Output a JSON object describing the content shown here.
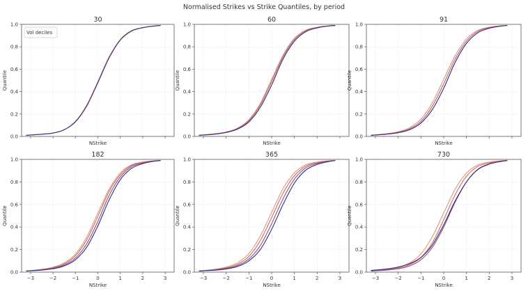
{
  "figure": {
    "title": "Normalised Strikes vs Strike Quantiles, by period"
  },
  "chart_data": {
    "type": "line",
    "title": "Normalised Strikes vs Strike Quantiles, by period",
    "xlabel": "NStrike",
    "ylabel": "Quantile",
    "xlim": [
      -3.4,
      3.4
    ],
    "ylim": [
      0,
      1
    ],
    "xticks": [
      "−3",
      "−2",
      "−1",
      "0",
      "1",
      "2",
      "3"
    ],
    "xtick_values": [
      -3,
      -2,
      -1,
      0,
      1,
      2,
      3
    ],
    "yticks": [
      "0.0",
      "0.2",
      "0.4",
      "0.6",
      "0.8",
      "1.0"
    ],
    "ytick_values": [
      0,
      0.2,
      0.4,
      0.6,
      0.8,
      1.0
    ],
    "grid": true,
    "legend": {
      "title": "Vol deciles",
      "placement": "top-left",
      "panel": 0
    },
    "series_colors": [
      "#2b2d7a",
      "#4a3d8e",
      "#6b4a9a",
      "#8c4f8f",
      "#a65a80",
      "#b86070",
      "#c96c5e",
      "#d6705a",
      "#dd7e6a",
      "#e2957e"
    ],
    "x_samples": [
      -3.2,
      -2.5,
      -2.0,
      -1.5,
      -1.0,
      -0.5,
      0.0,
      0.5,
      1.0,
      1.5,
      2.0,
      2.5,
      2.8
    ],
    "panels": [
      {
        "title": "30",
        "x_tick_labels_shown": false,
        "series": [
          {
            "values": [
              0.01,
              0.02,
              0.03,
              0.06,
              0.13,
              0.27,
              0.48,
              0.7,
              0.86,
              0.94,
              0.97,
              0.985,
              0.99
            ]
          },
          {
            "values": [
              0.01,
              0.02,
              0.03,
              0.06,
              0.135,
              0.28,
              0.49,
              0.71,
              0.865,
              0.945,
              0.972,
              0.986,
              0.99
            ]
          }
        ]
      },
      {
        "title": "60",
        "x_tick_labels_shown": false,
        "series": [
          {
            "values": [
              0.01,
              0.02,
              0.035,
              0.065,
              0.13,
              0.26,
              0.46,
              0.69,
              0.85,
              0.935,
              0.968,
              0.985,
              0.99
            ]
          },
          {
            "values": [
              0.01,
              0.022,
              0.037,
              0.07,
              0.14,
              0.28,
              0.49,
              0.71,
              0.865,
              0.943,
              0.972,
              0.986,
              0.99
            ]
          },
          {
            "values": [
              0.01,
              0.024,
              0.04,
              0.075,
              0.15,
              0.295,
              0.51,
              0.725,
              0.875,
              0.948,
              0.975,
              0.987,
              0.99
            ]
          }
        ]
      },
      {
        "title": "91",
        "x_tick_labels_shown": false,
        "series": [
          {
            "values": [
              0.01,
              0.02,
              0.033,
              0.06,
              0.12,
              0.24,
              0.43,
              0.66,
              0.83,
              0.925,
              0.965,
              0.984,
              0.99
            ]
          },
          {
            "values": [
              0.01,
              0.022,
              0.037,
              0.068,
              0.135,
              0.27,
              0.47,
              0.69,
              0.85,
              0.937,
              0.97,
              0.985,
              0.99
            ]
          },
          {
            "values": [
              0.01,
              0.024,
              0.042,
              0.078,
              0.155,
              0.3,
              0.51,
              0.72,
              0.87,
              0.947,
              0.975,
              0.987,
              0.99
            ]
          }
        ]
      },
      {
        "title": "182",
        "x_tick_labels_shown": true,
        "series": [
          {
            "values": [
              0.01,
              0.018,
              0.03,
              0.055,
              0.11,
              0.22,
              0.41,
              0.64,
              0.82,
              0.92,
              0.962,
              0.983,
              0.99
            ]
          },
          {
            "values": [
              0.01,
              0.02,
              0.034,
              0.063,
              0.125,
              0.25,
              0.45,
              0.68,
              0.845,
              0.935,
              0.968,
              0.985,
              0.99
            ]
          },
          {
            "values": [
              0.01,
              0.023,
              0.039,
              0.072,
              0.145,
              0.285,
              0.495,
              0.715,
              0.865,
              0.945,
              0.973,
              0.986,
              0.99
            ]
          },
          {
            "values": [
              0.01,
              0.025,
              0.044,
              0.082,
              0.16,
              0.31,
              0.525,
              0.735,
              0.88,
              0.952,
              0.977,
              0.988,
              0.99
            ]
          }
        ]
      },
      {
        "title": "365",
        "x_tick_labels_shown": true,
        "series": [
          {
            "values": [
              0.01,
              0.017,
              0.028,
              0.05,
              0.1,
              0.2,
              0.38,
              0.6,
              0.79,
              0.905,
              0.955,
              0.98,
              0.99
            ]
          },
          {
            "values": [
              0.01,
              0.019,
              0.032,
              0.059,
              0.117,
              0.235,
              0.43,
              0.65,
              0.825,
              0.925,
              0.964,
              0.983,
              0.99
            ]
          },
          {
            "values": [
              0.01,
              0.022,
              0.038,
              0.07,
              0.14,
              0.28,
              0.485,
              0.7,
              0.855,
              0.94,
              0.97,
              0.985,
              0.99
            ]
          },
          {
            "values": [
              0.01,
              0.025,
              0.045,
              0.083,
              0.165,
              0.32,
              0.53,
              0.74,
              0.88,
              0.952,
              0.977,
              0.988,
              0.99
            ]
          }
        ]
      },
      {
        "title": "730",
        "x_tick_labels_shown": true,
        "series": [
          {
            "values": [
              0.015,
              0.028,
              0.045,
              0.075,
              0.13,
              0.24,
              0.42,
              0.63,
              0.8,
              0.91,
              0.958,
              0.981,
              0.99
            ]
          },
          {
            "values": [
              0.01,
              0.018,
              0.03,
              0.055,
              0.11,
              0.22,
              0.4,
              0.62,
              0.8,
              0.912,
              0.96,
              0.982,
              0.99
            ]
          },
          {
            "values": [
              0.01,
              0.021,
              0.036,
              0.066,
              0.13,
              0.26,
              0.465,
              0.685,
              0.85,
              0.937,
              0.969,
              0.985,
              0.99
            ]
          },
          {
            "values": [
              0.01,
              0.025,
              0.044,
              0.082,
              0.162,
              0.315,
              0.525,
              0.735,
              0.878,
              0.95,
              0.976,
              0.988,
              0.99
            ]
          }
        ]
      }
    ]
  }
}
